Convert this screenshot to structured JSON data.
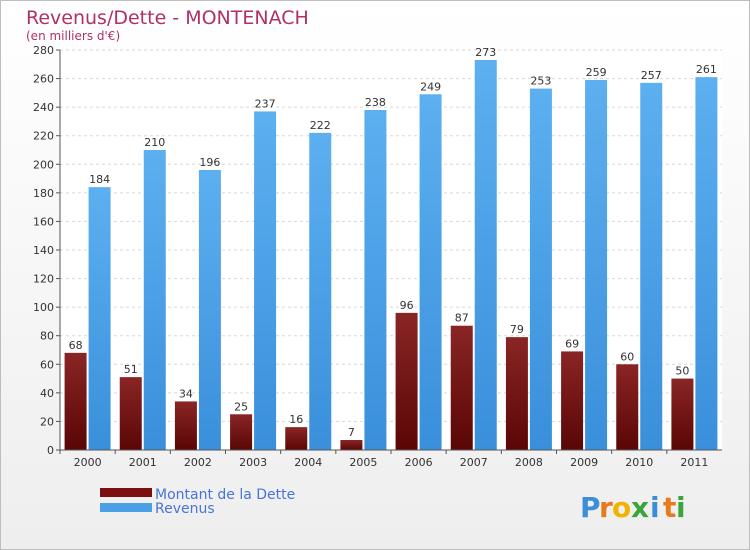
{
  "chart_data": {
    "type": "bar",
    "title": "Revenus/Dette - MONTENACH",
    "subtitle": "(en milliers d'€)",
    "categories": [
      "2000",
      "2001",
      "2002",
      "2003",
      "2004",
      "2005",
      "2006",
      "2007",
      "2008",
      "2009",
      "2010",
      "2011"
    ],
    "series": [
      {
        "name": "Montant de la Dette",
        "color": "#7a1010",
        "values": [
          68,
          51,
          34,
          25,
          16,
          7,
          96,
          87,
          79,
          69,
          60,
          50
        ]
      },
      {
        "name": "Revenus",
        "color": "#4a9fe6",
        "values": [
          184,
          210,
          196,
          237,
          222,
          238,
          249,
          273,
          253,
          259,
          257,
          261
        ]
      }
    ],
    "ylim": [
      0,
      280
    ],
    "yticks": [
      0,
      20,
      40,
      60,
      80,
      100,
      120,
      140,
      160,
      180,
      200,
      220,
      240,
      260,
      280
    ],
    "grid": true,
    "legend": "bottom-left"
  },
  "logo": {
    "letters": [
      {
        "char": "P",
        "color": "#3b8fd8"
      },
      {
        "char": "r",
        "color": "#e87a1e"
      },
      {
        "char": "o",
        "color": "#f0b400"
      },
      {
        "char": "x",
        "color": "#3aa53a"
      },
      {
        "char": "i",
        "color": "#3b8fd8"
      },
      {
        "char": "t",
        "color": "#e87a1e"
      },
      {
        "char": "i",
        "color": "#3aa53a"
      }
    ]
  }
}
